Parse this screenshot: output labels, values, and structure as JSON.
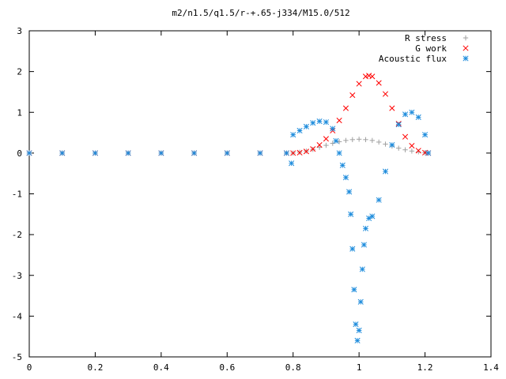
{
  "chart_data": {
    "type": "scatter",
    "title": "m2/n1.5/q1.5/r-+.65-j334/M15.0/512",
    "xlabel": "",
    "ylabel": "",
    "xlim": [
      0,
      1.4
    ],
    "ylim": [
      -5,
      3
    ],
    "x_ticks": [
      "0",
      "0.2",
      "0.4",
      "0.6",
      "0.8",
      "1",
      "1.2",
      "1.4"
    ],
    "y_ticks": [
      "3",
      "2",
      "1",
      "0",
      "-1",
      "-2",
      "-3",
      "-4",
      "-5"
    ],
    "grid": false,
    "legend_position": "top-right",
    "series": [
      {
        "name": "R stress",
        "color": "#a0a0a0",
        "marker": "plus",
        "x": [
          0.0,
          0.1,
          0.2,
          0.3,
          0.4,
          0.5,
          0.6,
          0.7,
          0.78,
          0.8,
          0.82,
          0.84,
          0.86,
          0.88,
          0.9,
          0.92,
          0.94,
          0.96,
          0.98,
          1.0,
          1.02,
          1.04,
          1.06,
          1.08,
          1.1,
          1.12,
          1.14,
          1.16,
          1.18,
          1.2,
          1.21
        ],
        "y": [
          0.0,
          0.0,
          0.0,
          0.0,
          0.0,
          0.0,
          0.0,
          0.0,
          0.0,
          0.0,
          0.02,
          0.05,
          0.09,
          0.14,
          0.19,
          0.24,
          0.28,
          0.31,
          0.33,
          0.34,
          0.33,
          0.31,
          0.27,
          0.22,
          0.17,
          0.12,
          0.08,
          0.05,
          0.03,
          0.01,
          0.0
        ]
      },
      {
        "name": "G work",
        "color": "#ff0000",
        "marker": "cross",
        "x": [
          0.0,
          0.1,
          0.2,
          0.3,
          0.4,
          0.5,
          0.6,
          0.7,
          0.78,
          0.8,
          0.82,
          0.84,
          0.86,
          0.88,
          0.9,
          0.92,
          0.94,
          0.96,
          0.98,
          1.0,
          1.02,
          1.03,
          1.04,
          1.06,
          1.08,
          1.1,
          1.12,
          1.14,
          1.16,
          1.18,
          1.2,
          1.21
        ],
        "y": [
          0.0,
          0.0,
          0.0,
          0.0,
          0.0,
          0.0,
          0.0,
          0.0,
          0.0,
          0.0,
          0.01,
          0.04,
          0.1,
          0.2,
          0.35,
          0.55,
          0.8,
          1.1,
          1.42,
          1.7,
          1.88,
          1.9,
          1.88,
          1.72,
          1.45,
          1.1,
          0.72,
          0.4,
          0.18,
          0.06,
          0.01,
          0.0
        ]
      },
      {
        "name": "Acoustic flux",
        "color": "#1e8cdc",
        "marker": "star",
        "x": [
          0.0,
          0.1,
          0.2,
          0.3,
          0.4,
          0.5,
          0.6,
          0.7,
          0.78,
          0.795,
          0.8,
          0.82,
          0.84,
          0.86,
          0.88,
          0.9,
          0.92,
          0.93,
          0.94,
          0.95,
          0.96,
          0.97,
          0.975,
          0.98,
          0.985,
          0.99,
          0.995,
          1.0,
          1.005,
          1.01,
          1.015,
          1.02,
          1.03,
          1.04,
          1.06,
          1.08,
          1.1,
          1.12,
          1.14,
          1.16,
          1.18,
          1.2,
          1.21
        ],
        "y": [
          0.0,
          0.0,
          0.0,
          0.0,
          0.0,
          0.0,
          0.0,
          0.0,
          0.0,
          -0.25,
          0.45,
          0.55,
          0.65,
          0.74,
          0.78,
          0.76,
          0.6,
          0.3,
          0.0,
          -0.3,
          -0.6,
          -0.95,
          -1.5,
          -2.35,
          -3.35,
          -4.2,
          -4.6,
          -4.35,
          -3.65,
          -2.85,
          -2.25,
          -1.85,
          -1.6,
          -1.55,
          -1.15,
          -0.45,
          0.2,
          0.7,
          0.95,
          1.0,
          0.88,
          0.45,
          0.0
        ]
      }
    ]
  }
}
